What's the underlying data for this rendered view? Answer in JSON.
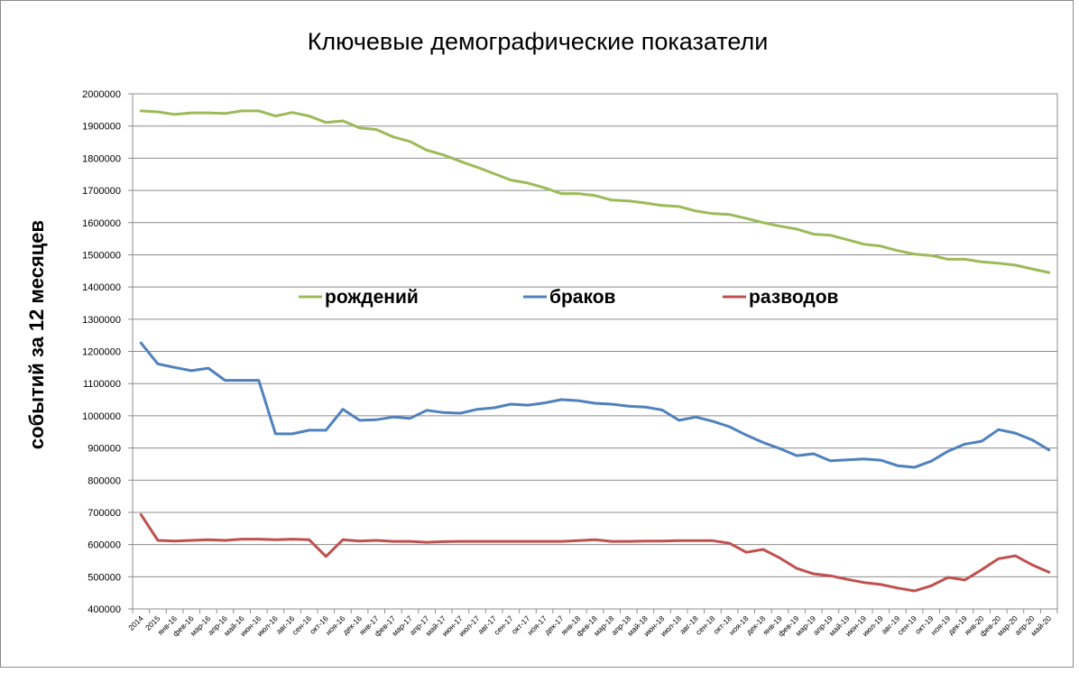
{
  "chart_data": {
    "type": "line",
    "title": "Ключевые демографические показатели",
    "xlabel": "",
    "ylabel": "событий за 12  месяцев",
    "ylim": [
      400000,
      2000000
    ],
    "yticks": [
      400000,
      500000,
      600000,
      700000,
      800000,
      900000,
      1000000,
      1100000,
      1200000,
      1300000,
      1400000,
      1500000,
      1600000,
      1700000,
      1800000,
      1900000,
      2000000
    ],
    "ytick_labels": [
      "400000",
      "500000",
      "600000",
      "700000",
      "800000",
      "900000",
      "1000000",
      "1100000",
      "1200000",
      "1300000",
      "1400000",
      "1500000",
      "1600000",
      "1700000",
      "1800000",
      "1900000",
      "2000000"
    ],
    "grid": true,
    "legend_position": "inside, middle",
    "categories": [
      "2014",
      "2015",
      "янв-16",
      "фев-16",
      "мар-16",
      "апр-16",
      "май-16",
      "июн-16",
      "июл-16",
      "авг-16",
      "сен-16",
      "окт-16",
      "ноя-16",
      "дек-16",
      "янв-17",
      "фев-17",
      "мар-17",
      "апр-17",
      "май-17",
      "июн-17",
      "июл-17",
      "авг-17",
      "сен-17",
      "окт-17",
      "ноя-17",
      "дек-17",
      "янв-18",
      "фев-18",
      "мар-18",
      "апр-18",
      "май-18",
      "июн-18",
      "июл-18",
      "авг-18",
      "сен-18",
      "окт-18",
      "ноя-18",
      "дек-18",
      "янв-19",
      "фев-19",
      "мар-19",
      "апр-19",
      "май-19",
      "июн-19",
      "июл-19",
      "авг-19",
      "сен-19",
      "окт-19",
      "ноя-19",
      "дек-19",
      "янв-20",
      "фев-20",
      "мар-20",
      "апр-20",
      "май-20"
    ],
    "series": [
      {
        "name": "рождений",
        "color": "#9bbb59",
        "values": [
          1947000,
          1944000,
          1936000,
          1941000,
          1941000,
          1939000,
          1947000,
          1947000,
          1931000,
          1942000,
          1931000,
          1911000,
          1916000,
          1894000,
          1889000,
          1866000,
          1852000,
          1825000,
          1810000,
          1790000,
          1772000,
          1752000,
          1732000,
          1723000,
          1708000,
          1690000,
          1690000,
          1684000,
          1670000,
          1667000,
          1661000,
          1653000,
          1650000,
          1636000,
          1628000,
          1625000,
          1613000,
          1600000,
          1589000,
          1580000,
          1564000,
          1561000,
          1547000,
          1533000,
          1527000,
          1513000,
          1502000,
          1498000,
          1486000,
          1486000,
          1478000,
          1474000,
          1468000,
          1456000,
          1445000
        ]
      },
      {
        "name": "браков",
        "color": "#4f81bd",
        "values": [
          1226000,
          1161000,
          1150000,
          1140000,
          1148000,
          1110000,
          1110000,
          1110000,
          944000,
          944000,
          955000,
          955000,
          1020000,
          986000,
          988000,
          996000,
          992000,
          1017000,
          1010000,
          1008000,
          1020000,
          1025000,
          1036000,
          1033000,
          1040000,
          1050000,
          1047000,
          1039000,
          1036000,
          1030000,
          1027000,
          1018000,
          986000,
          996000,
          983000,
          966000,
          940000,
          917000,
          898000,
          876000,
          882000,
          860000,
          863000,
          866000,
          862000,
          845000,
          840000,
          859000,
          890000,
          912000,
          921000,
          957000,
          946000,
          925000,
          894000
        ]
      },
      {
        "name": "разводов",
        "color": "#c0504d",
        "values": [
          693000,
          613000,
          611000,
          613000,
          615000,
          613000,
          617000,
          617000,
          615000,
          617000,
          615000,
          563000,
          615000,
          611000,
          613000,
          610000,
          610000,
          607000,
          609000,
          610000,
          610000,
          610000,
          610000,
          610000,
          610000,
          610000,
          612000,
          615000,
          610000,
          610000,
          611000,
          611000,
          612000,
          612000,
          612000,
          604000,
          576000,
          585000,
          558000,
          526000,
          509000,
          503000,
          492000,
          482000,
          476000,
          465000,
          456000,
          472000,
          498000,
          490000,
          522000,
          556000,
          565000,
          537000,
          514000
        ]
      }
    ]
  }
}
